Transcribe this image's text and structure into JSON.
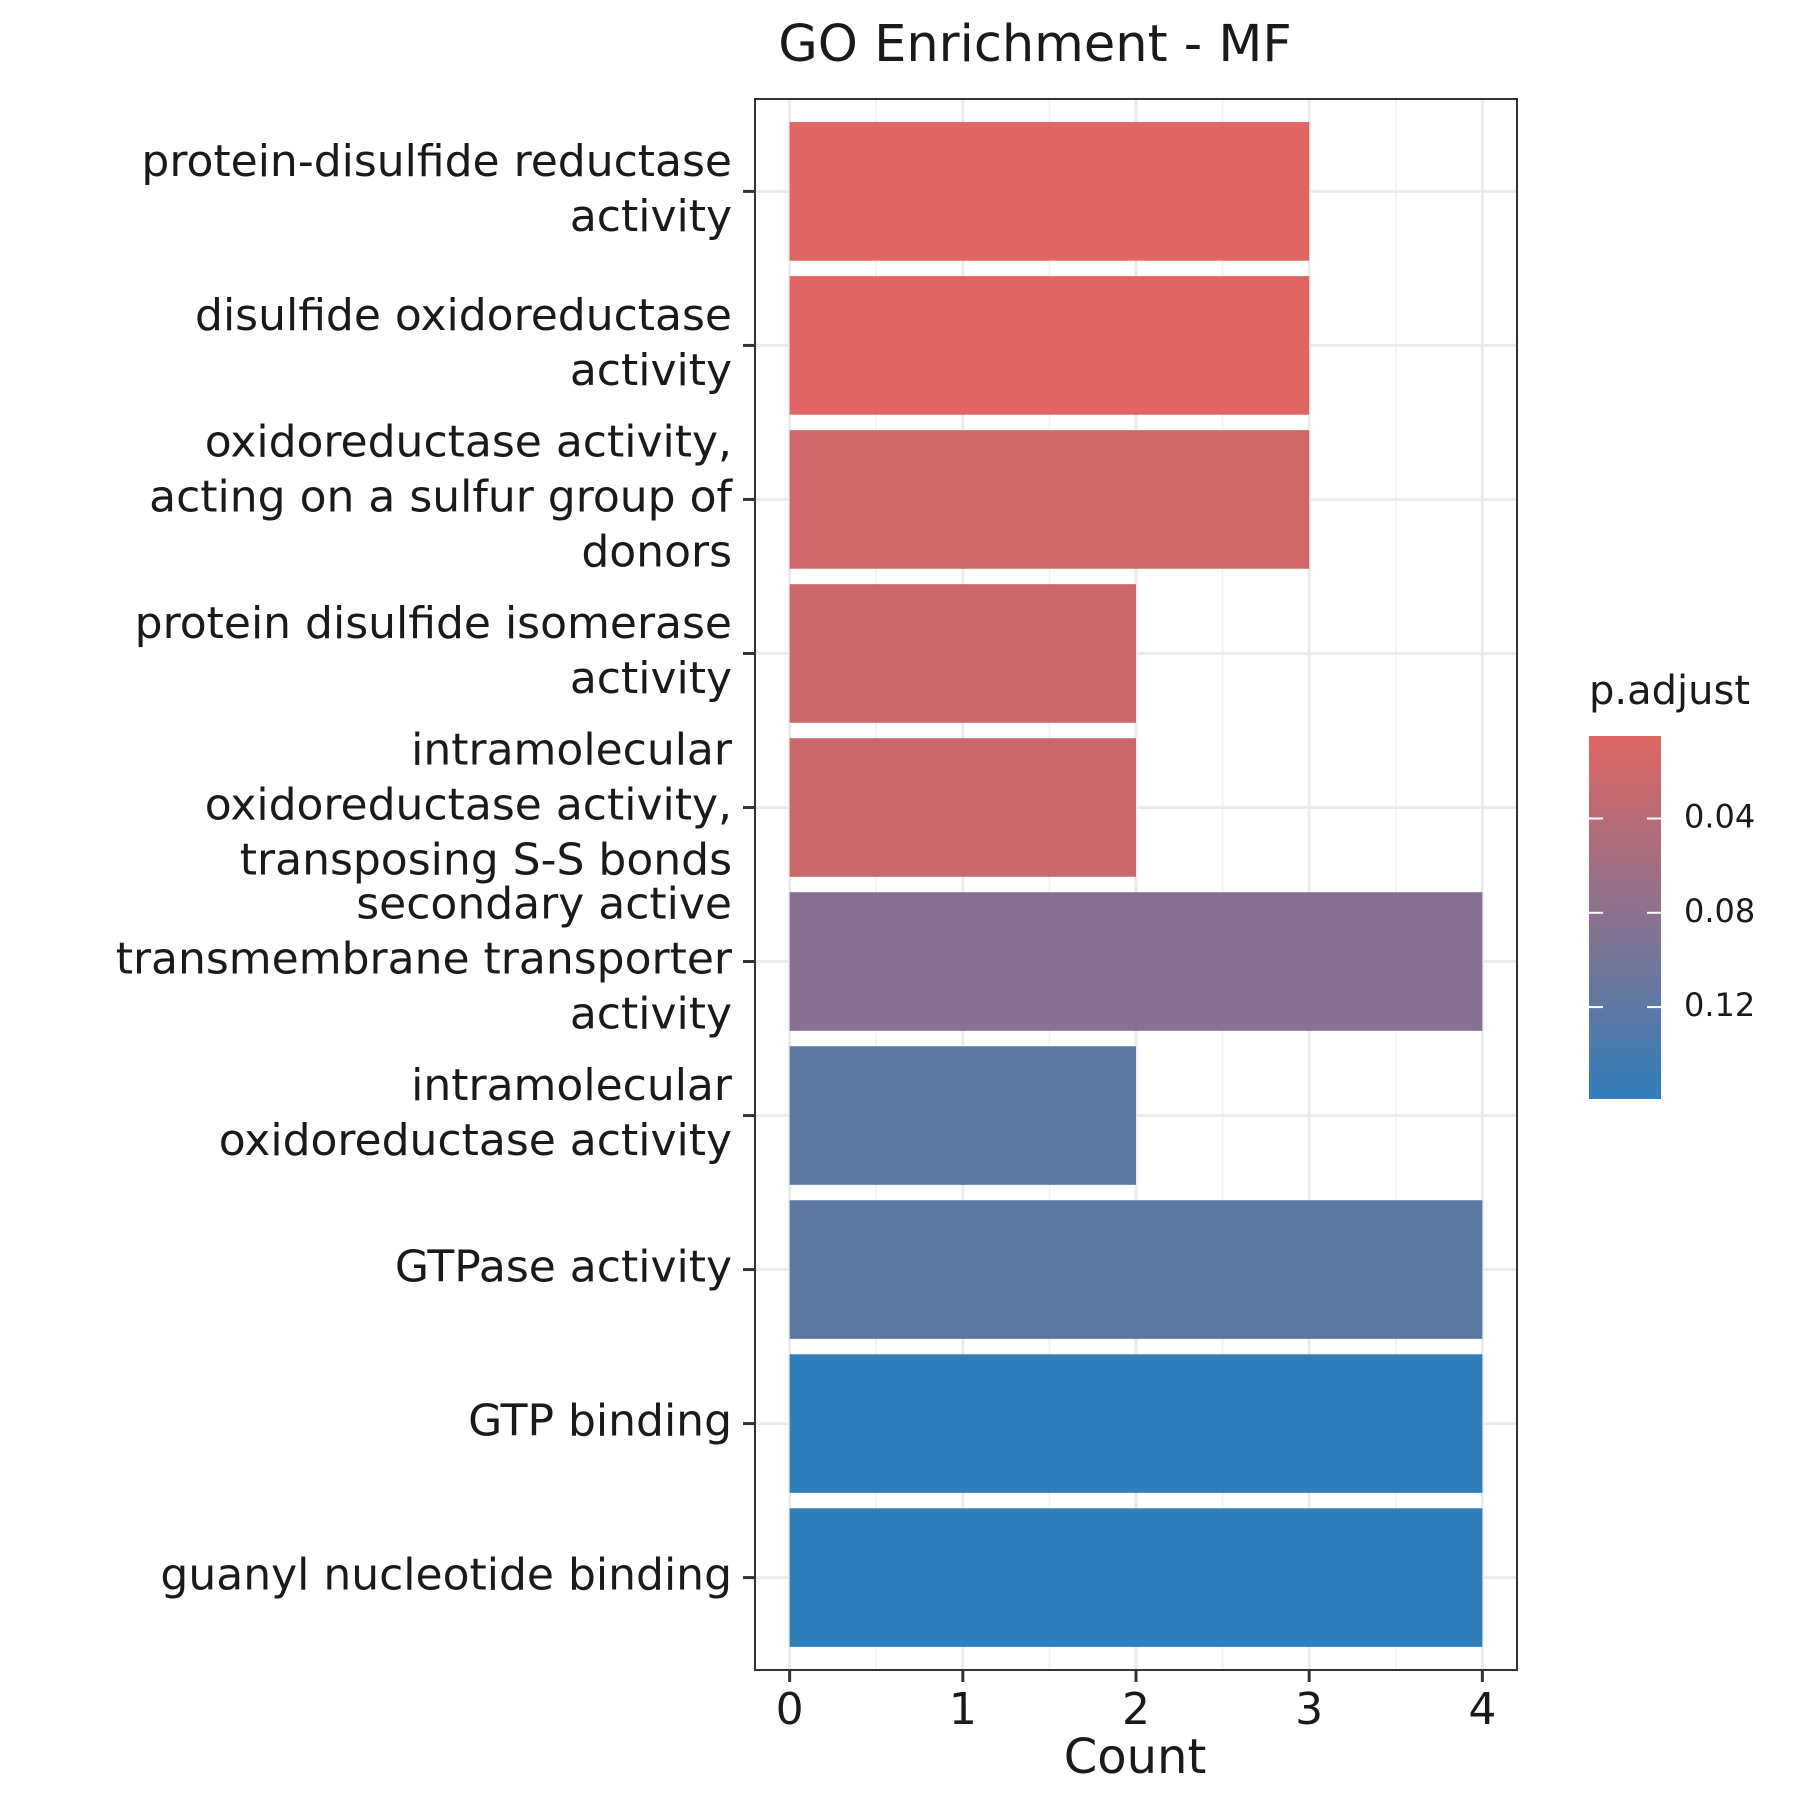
{
  "chart_data": {
    "type": "bar",
    "orientation": "horizontal",
    "title": "GO Enrichment - MF",
    "x_label": "Count",
    "categories": [
      "protein-disulfide reductase\nactivity",
      "disulfide oxidoreductase\nactivity",
      "oxidoreductase activity,\nacting on a sulfur group of\ndonors",
      "protein disulfide isomerase\nactivity",
      "intramolecular\noxidoreductase activity,\ntransposing S-S bonds",
      "secondary active\ntransmembrane transporter\nactivity",
      "intramolecular\noxidoreductase activity",
      "GTPase activity",
      "GTP binding",
      "guanyl nucleotide binding"
    ],
    "values": [
      3,
      3,
      3,
      2,
      2,
      4,
      2,
      4,
      4,
      4
    ],
    "p_adjust": [
      0.005,
      0.006,
      0.02,
      0.025,
      0.025,
      0.085,
      0.12,
      0.12,
      0.159,
      0.159
    ],
    "xlim": [
      -0.2,
      4.2
    ],
    "xticks": [
      0,
      1,
      2,
      3,
      4
    ],
    "x_minor_ticks": [
      0.5,
      1.5,
      2.5,
      3.5
    ],
    "grid": true,
    "colorbar": {
      "title": "p.adjust",
      "lim": [
        0.005,
        0.159
      ],
      "ticks": [
        0.04,
        0.08,
        0.12
      ],
      "low_color": "#e06663",
      "high_color": "#327eba"
    }
  }
}
